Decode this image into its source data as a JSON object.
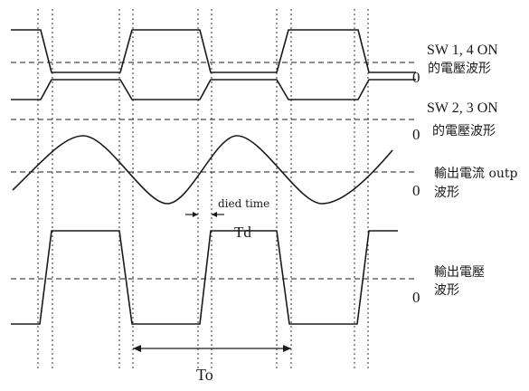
{
  "waveforms": [
    {
      "id": "sw14",
      "label_line1": "SW 1, 4 ON",
      "label_line2": "的電壓波形",
      "zero": "0"
    },
    {
      "id": "sw23",
      "label_line1": "SW 2, 3 ON",
      "label_line2": "的電壓波形",
      "zero": "0"
    },
    {
      "id": "current",
      "label_line1": "輸出電流 outp",
      "label_line2": "波形",
      "zero": "0"
    },
    {
      "id": "voltage",
      "label_line1": "輸出電壓",
      "label_line2": "波形",
      "zero": "0"
    }
  ],
  "annotations": {
    "dead_time": "died time",
    "td": "Td",
    "period": "To"
  }
}
